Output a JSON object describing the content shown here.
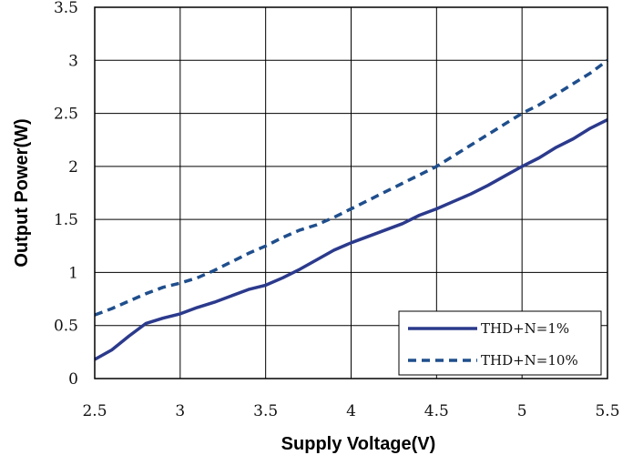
{
  "chart_data": {
    "type": "line",
    "xlabel": "Supply Voltage(V)",
    "ylabel": "Output Power(W)",
    "xlim": [
      2.5,
      5.5
    ],
    "ylim": [
      0,
      3.5
    ],
    "x_ticks": [
      "2.5",
      "3",
      "3.5",
      "4",
      "4.5",
      "5",
      "5.5"
    ],
    "y_ticks": [
      "0",
      "0.5",
      "1",
      "1.5",
      "2",
      "2.5",
      "3",
      "3.5"
    ],
    "grid": true,
    "legend_position": "bottom-right",
    "series": [
      {
        "name": "THD+N=1%",
        "style": "solid",
        "color": "#2b3a8c",
        "x": [
          2.5,
          2.6,
          2.7,
          2.8,
          2.9,
          3.0,
          3.05,
          3.1,
          3.2,
          3.3,
          3.4,
          3.5,
          3.6,
          3.7,
          3.8,
          3.9,
          4.0,
          4.1,
          4.2,
          4.3,
          4.4,
          4.5,
          4.6,
          4.7,
          4.8,
          4.9,
          5.0,
          5.1,
          5.2,
          5.3,
          5.4,
          5.5
        ],
        "y": [
          0.18,
          0.27,
          0.4,
          0.52,
          0.57,
          0.61,
          0.64,
          0.67,
          0.72,
          0.78,
          0.84,
          0.88,
          0.95,
          1.03,
          1.12,
          1.21,
          1.28,
          1.34,
          1.4,
          1.46,
          1.54,
          1.6,
          1.67,
          1.74,
          1.82,
          1.91,
          2.0,
          2.08,
          2.18,
          2.26,
          2.36,
          2.44
        ]
      },
      {
        "name": "THD+N=10%",
        "style": "dashed",
        "color": "#1f4e8c",
        "x": [
          2.5,
          2.6,
          2.7,
          2.8,
          2.9,
          3.0,
          3.1,
          3.2,
          3.3,
          3.4,
          3.5,
          3.6,
          3.7,
          3.8,
          3.9,
          4.0,
          4.1,
          4.2,
          4.3,
          4.4,
          4.5,
          4.6,
          4.7,
          4.8,
          4.9,
          5.0,
          5.1,
          5.2,
          5.3,
          5.4,
          5.5
        ],
        "y": [
          0.6,
          0.66,
          0.73,
          0.8,
          0.86,
          0.9,
          0.95,
          1.02,
          1.1,
          1.18,
          1.25,
          1.33,
          1.4,
          1.45,
          1.52,
          1.6,
          1.68,
          1.76,
          1.84,
          1.92,
          2.0,
          2.1,
          2.2,
          2.3,
          2.4,
          2.5,
          2.58,
          2.68,
          2.78,
          2.88,
          3.0
        ]
      }
    ]
  }
}
